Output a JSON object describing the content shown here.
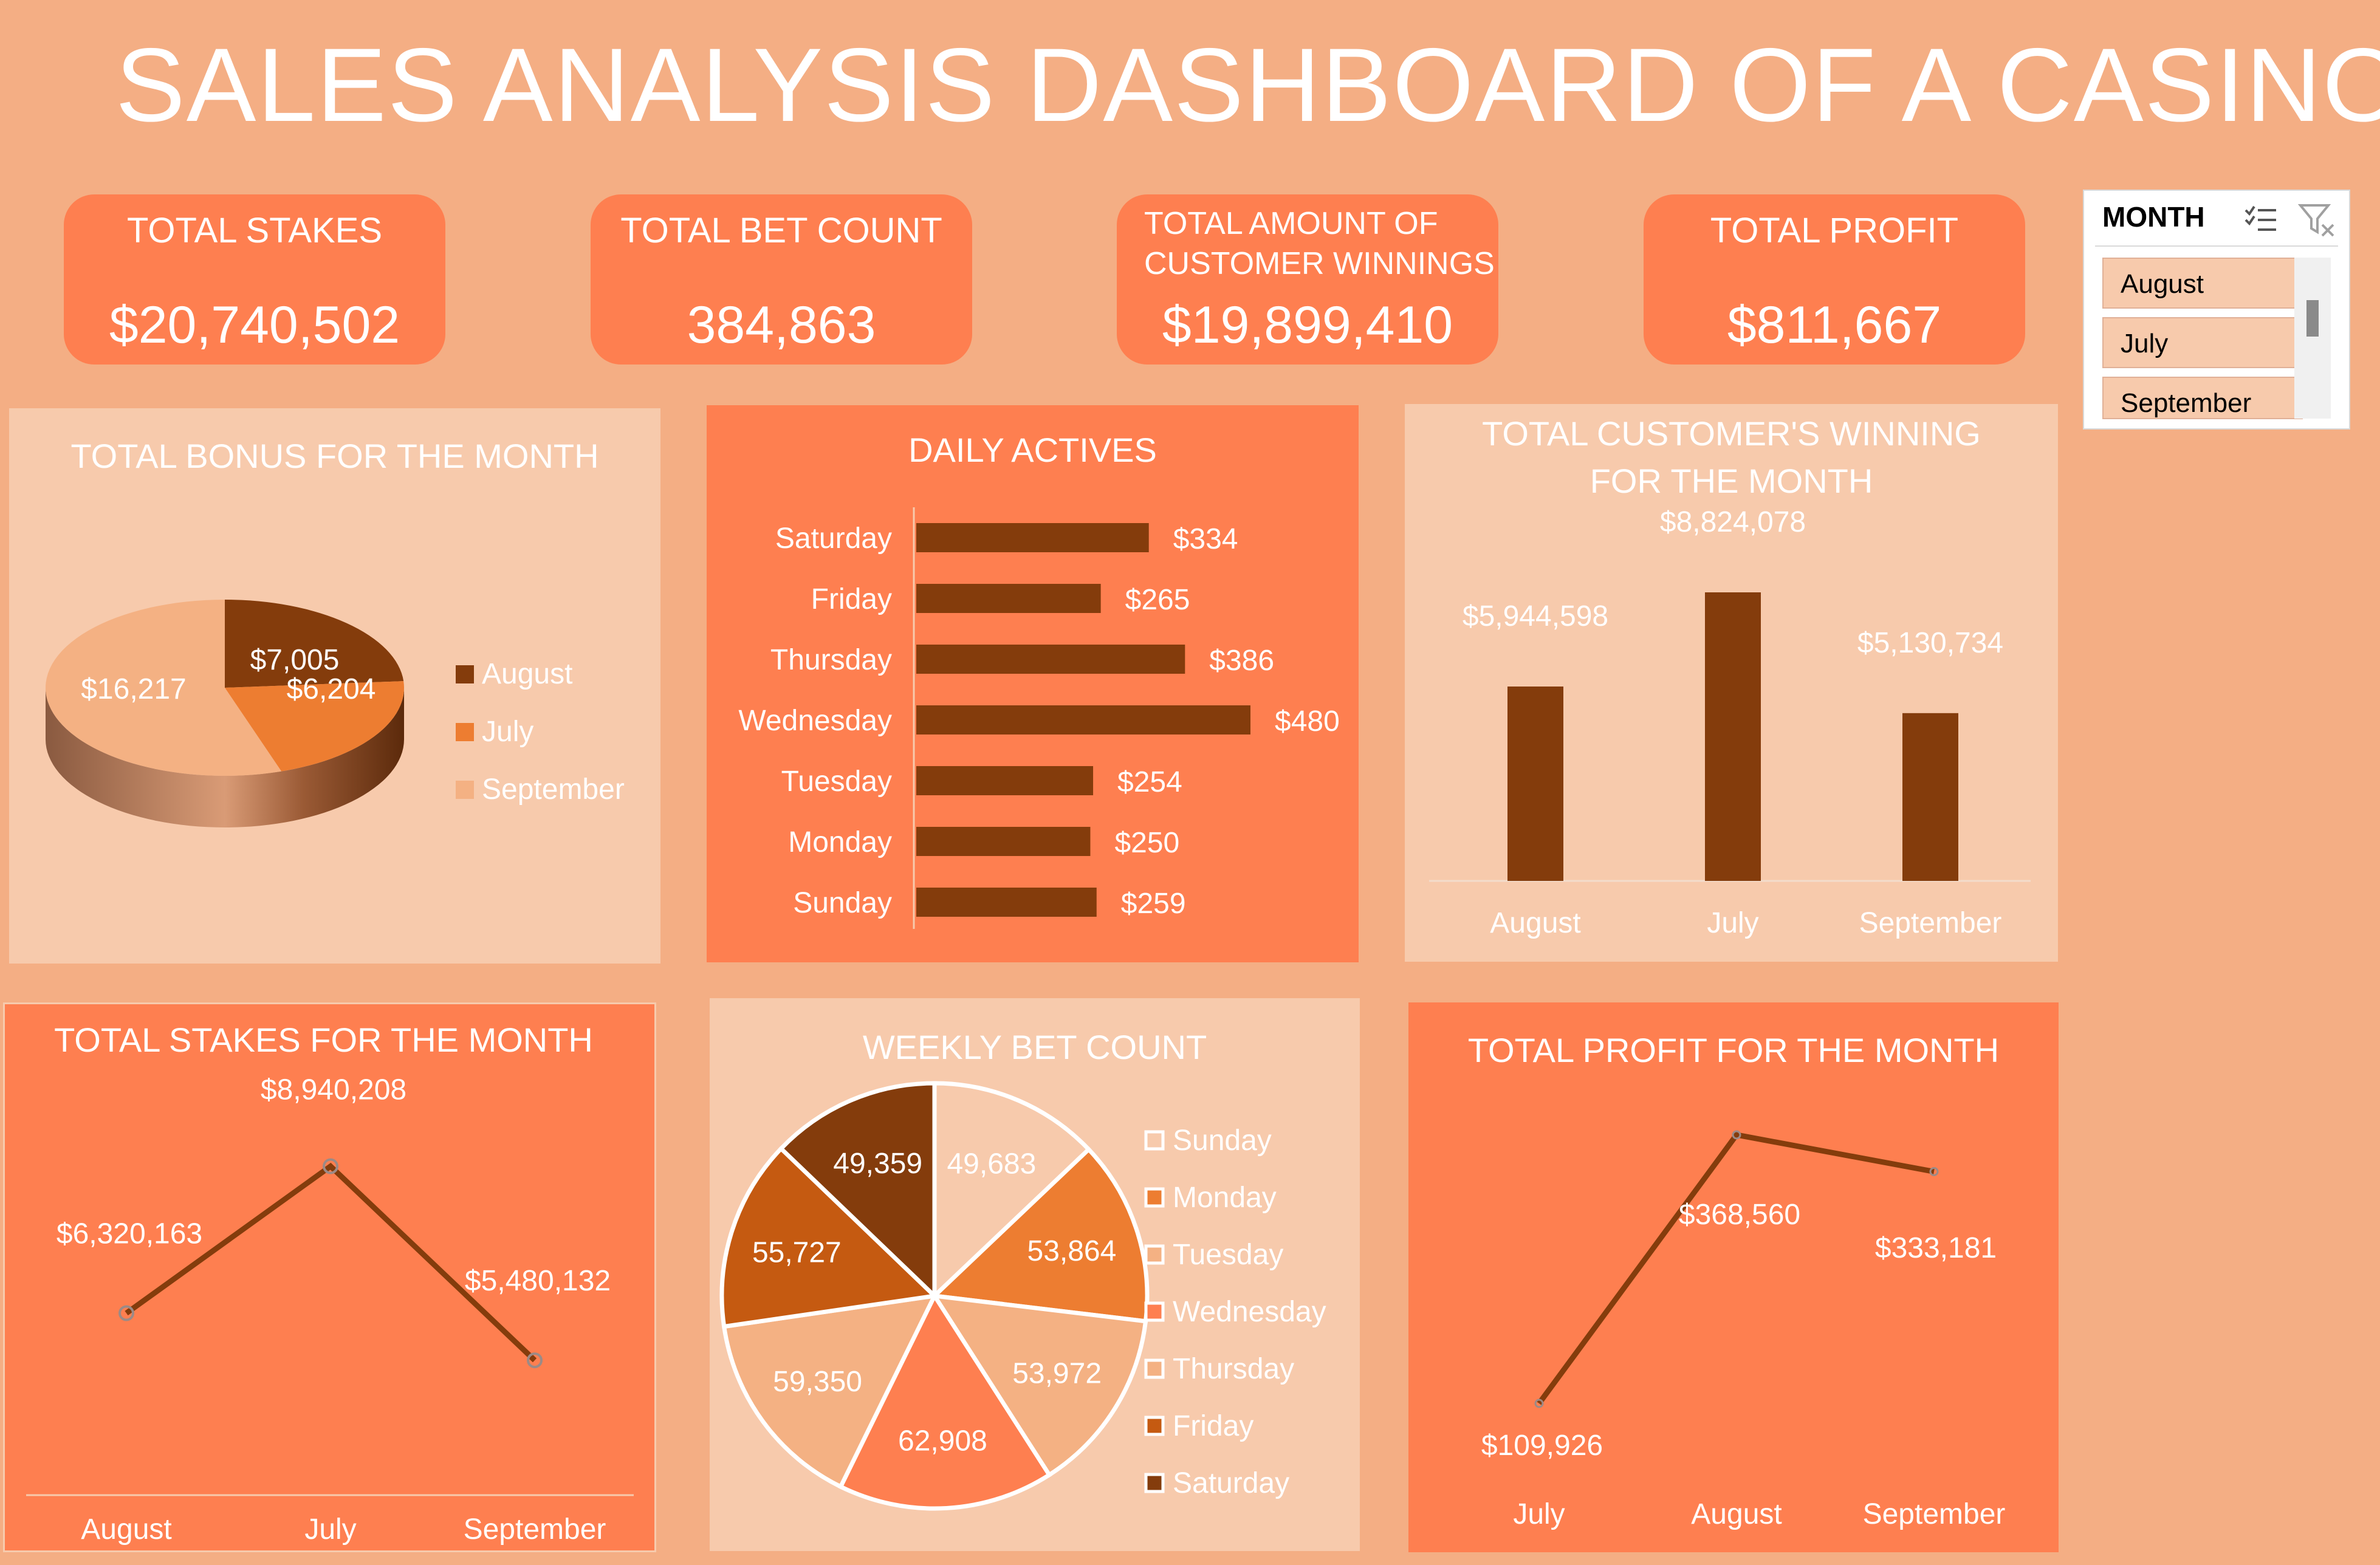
{
  "title": "SALES ANALYSIS DASHBOARD OF A CASINO",
  "kpis": {
    "stakes_label": "TOTAL STAKES",
    "stakes_value": "$20,740,502",
    "betcount_label": "TOTAL BET COUNT",
    "betcount_value": "384,863",
    "winnings_label_line1": "TOTAL AMOUNT OF",
    "winnings_label_line2": "CUSTOMER WINNINGS",
    "winnings_value": "$19,899,410",
    "profit_label": "TOTAL PROFIT",
    "profit_value": "$811,667"
  },
  "slicer": {
    "header": "MONTH",
    "items": [
      "August",
      "July",
      "September"
    ]
  },
  "colors": {
    "background": "#F4AE84",
    "dark_panel": "#FE7F50",
    "light_panel": "#F7CAAC",
    "brown": "#843C0C",
    "orange": "#ED7D31",
    "peach": "#F4B183",
    "rust": "#C55A11"
  },
  "chart_data": [
    {
      "id": "bonus",
      "type": "pie",
      "title": "TOTAL BONUS FOR THE MONTH",
      "categories": [
        "August",
        "July",
        "September"
      ],
      "values": [
        7005,
        6204,
        16217
      ],
      "labels": [
        "$7,005",
        "$6,204",
        "$16,217"
      ],
      "colors": [
        "#843C0C",
        "#ED7D31",
        "#F4B183"
      ],
      "style": "3d",
      "legend": "right"
    },
    {
      "id": "daily",
      "type": "bar",
      "orientation": "horizontal",
      "title": "DAILY ACTIVES",
      "categories": [
        "Saturday",
        "Friday",
        "Thursday",
        "Wednesday",
        "Tuesday",
        "Monday",
        "Sunday"
      ],
      "values": [
        334,
        265,
        386,
        480,
        254,
        250,
        259
      ],
      "labels": [
        "$334",
        "$265",
        "$386",
        "$480",
        "$254",
        "$250",
        "$259"
      ],
      "color": "#843C0C",
      "xlim": [
        0,
        480
      ]
    },
    {
      "id": "winning",
      "type": "bar",
      "title_line1": "TOTAL CUSTOMER'S WINNING",
      "title_line2": "FOR THE MONTH",
      "categories": [
        "August",
        "July",
        "September"
      ],
      "values": [
        5944598,
        8824078,
        5130734
      ],
      "labels": [
        "$5,944,598",
        "$8,824,078",
        "$5,130,734"
      ],
      "color": "#843C0C",
      "ylim": [
        0,
        8824078
      ]
    },
    {
      "id": "stakes",
      "type": "line",
      "title": "TOTAL STAKES FOR THE MONTH",
      "categories": [
        "August",
        "July",
        "September"
      ],
      "values": [
        6320163,
        8940208,
        5480132
      ],
      "labels": [
        "$6,320,163",
        "$8,940,208",
        "$5,480,132"
      ],
      "color": "#843C0C"
    },
    {
      "id": "weekly",
      "type": "pie",
      "title": "WEEKLY BET COUNT",
      "categories": [
        "Sunday",
        "Monday",
        "Tuesday",
        "Wednesday",
        "Thursday",
        "Friday",
        "Saturday"
      ],
      "values": [
        49683,
        53864,
        53972,
        62908,
        59350,
        55727,
        49359
      ],
      "labels": [
        "49,683",
        "53,864",
        "53,972",
        "62,908",
        "59,350",
        "55,727",
        "49,359"
      ],
      "colors": [
        "#F7CAAC",
        "#ED7D31",
        "#F4B183",
        "#FE7F50",
        "#F4B183",
        "#C55A11",
        "#843C0C"
      ],
      "legend": "right"
    },
    {
      "id": "profit",
      "type": "line",
      "title": "TOTAL PROFIT FOR THE MONTH",
      "categories": [
        "July",
        "August",
        "September"
      ],
      "values": [
        109926,
        368560,
        333181
      ],
      "labels": [
        "$109,926",
        "$368,560",
        "$333,181"
      ],
      "color": "#843C0C"
    }
  ]
}
